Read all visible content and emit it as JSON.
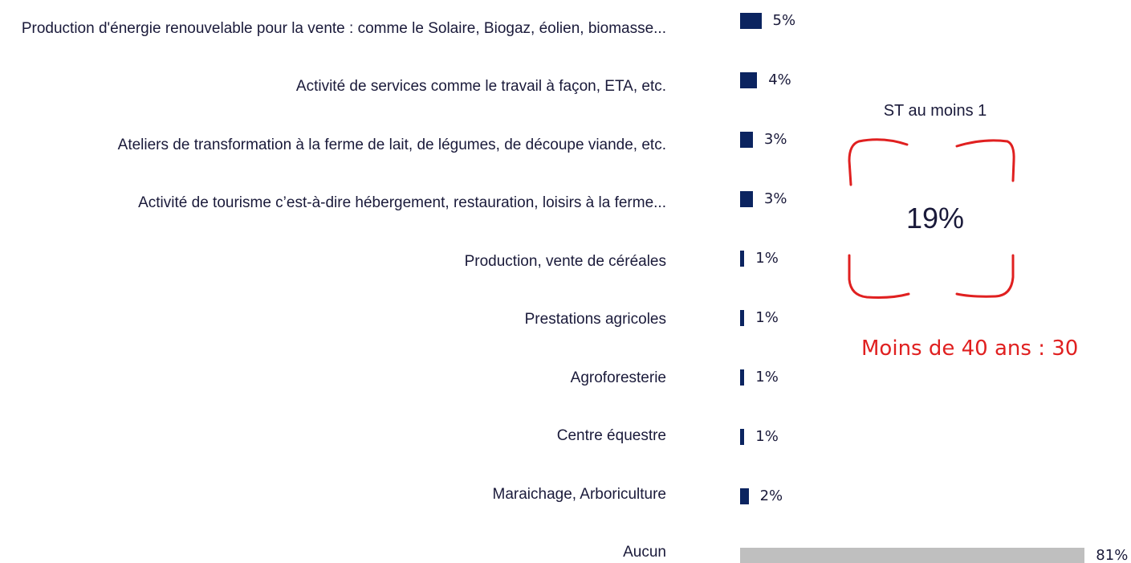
{
  "chart_data": {
    "type": "bar",
    "orientation": "horizontal",
    "categories": [
      "Production d'énergie renouvelable pour la vente : comme le Solaire, Biogaz, éolien, biomasse...",
      "Activité de services comme le travail à façon, ETA, etc.",
      "Ateliers de transformation à la ferme de lait, de légumes, de découpe viande, etc.",
      "Activité de tourisme c’est-à-dire hébergement, restauration, loisirs à la ferme...",
      "Production, vente de céréales",
      "Prestations agricoles",
      "Agroforesterie",
      "Centre équestre",
      "Maraichage, Arboriculture",
      "Aucun"
    ],
    "values": [
      5,
      4,
      3,
      3,
      1,
      1,
      1,
      1,
      2,
      81
    ],
    "value_labels": [
      "5%",
      "4%",
      "3%",
      "3%",
      "1%",
      "1%",
      "1%",
      "1%",
      "2%",
      "81%"
    ],
    "colors": [
      "#0b2460",
      "#0b2460",
      "#0b2460",
      "#0b2460",
      "#0b2460",
      "#0b2460",
      "#0b2460",
      "#0b2460",
      "#0b2460",
      "#bfbfbf"
    ],
    "annotations": {
      "summary_title": "ST au moins 1",
      "summary_value": "19%",
      "note": "Moins de 40 ans : 30"
    }
  }
}
